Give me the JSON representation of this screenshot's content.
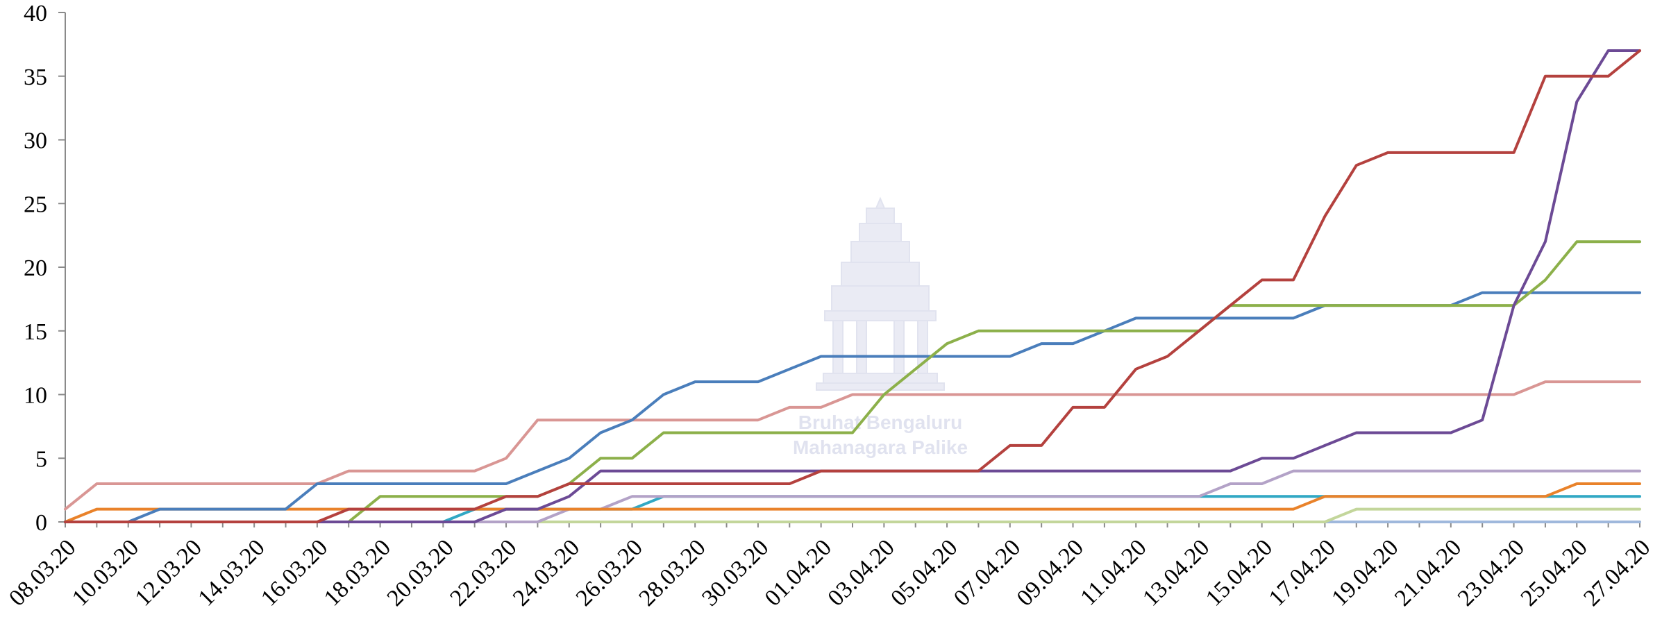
{
  "chart_data": {
    "type": "line",
    "title": "",
    "xlabel": "",
    "ylabel": "",
    "ylim": [
      0,
      40
    ],
    "yticks": [
      0,
      5,
      10,
      15,
      20,
      25,
      30,
      35,
      40
    ],
    "grid": false,
    "legend": "none",
    "x": [
      "08.03.20",
      "09.03.20",
      "10.03.20",
      "11.03.20",
      "12.03.20",
      "13.03.20",
      "14.03.20",
      "15.03.20",
      "16.03.20",
      "17.03.20",
      "18.03.20",
      "19.03.20",
      "20.03.20",
      "21.03.20",
      "22.03.20",
      "23.03.20",
      "24.03.20",
      "25.03.20",
      "26.03.20",
      "27.03.20",
      "28.03.20",
      "29.03.20",
      "30.03.20",
      "31.03.20",
      "01.04.20",
      "02.04.20",
      "03.04.20",
      "04.04.20",
      "05.04.20",
      "06.04.20",
      "07.04.20",
      "08.04.20",
      "09.04.20",
      "10.04.20",
      "11.04.20",
      "12.04.20",
      "13.04.20",
      "14.04.20",
      "15.04.20",
      "16.04.20",
      "17.04.20",
      "18.04.20",
      "19.04.20",
      "20.04.20",
      "21.04.20",
      "22.04.20",
      "23.04.20",
      "24.04.20",
      "25.04.20",
      "26.04.20",
      "27.04.20"
    ],
    "xtick_labels": [
      "08.03.20",
      "10.03.20",
      "12.03.20",
      "14.03.20",
      "16.03.20",
      "18.03.20",
      "20.03.20",
      "22.03.20",
      "24.03.20",
      "26.03.20",
      "28.03.20",
      "30.03.20",
      "01.04.20",
      "03.04.20",
      "05.04.20",
      "07.04.20",
      "09.04.20",
      "11.04.20",
      "13.04.20",
      "15.04.20",
      "17.04.20",
      "19.04.20",
      "21.04.20",
      "23.04.20",
      "25.04.20",
      "27.04.20"
    ],
    "series": [
      {
        "color": "#9fb8dc",
        "values": [
          0,
          0,
          0,
          0,
          0,
          0,
          0,
          0,
          0,
          0,
          0,
          0,
          0,
          0,
          0,
          0,
          0,
          0,
          0,
          0,
          0,
          0,
          0,
          0,
          0,
          0,
          0,
          0,
          0,
          0,
          0,
          0,
          0,
          0,
          0,
          0,
          0,
          0,
          0,
          0,
          0,
          0,
          0,
          0,
          0,
          0,
          0,
          0,
          0,
          0,
          0
        ]
      },
      {
        "color": "#c3d69b",
        "values": [
          0,
          0,
          0,
          0,
          0,
          0,
          0,
          0,
          0,
          0,
          0,
          0,
          0,
          0,
          0,
          0,
          0,
          0,
          0,
          0,
          0,
          0,
          0,
          0,
          0,
          0,
          0,
          0,
          0,
          0,
          0,
          0,
          0,
          0,
          0,
          0,
          0,
          0,
          0,
          0,
          0,
          1,
          1,
          1,
          1,
          1,
          1,
          1,
          1,
          1,
          1
        ]
      },
      {
        "color": "#31a8c4",
        "values": [
          0,
          0,
          0,
          0,
          0,
          0,
          0,
          0,
          0,
          0,
          0,
          0,
          0,
          1,
          1,
          1,
          1,
          1,
          1,
          2,
          2,
          2,
          2,
          2,
          2,
          2,
          2,
          2,
          2,
          2,
          2,
          2,
          2,
          2,
          2,
          2,
          2,
          2,
          2,
          2,
          2,
          2,
          2,
          2,
          2,
          2,
          2,
          2,
          2,
          2,
          2
        ]
      },
      {
        "color": "#b3a2c7",
        "values": [
          0,
          0,
          0,
          0,
          0,
          0,
          0,
          0,
          0,
          0,
          0,
          0,
          0,
          0,
          0,
          0,
          1,
          1,
          2,
          2,
          2,
          2,
          2,
          2,
          2,
          2,
          2,
          2,
          2,
          2,
          2,
          2,
          2,
          2,
          2,
          2,
          2,
          3,
          3,
          4,
          4,
          4,
          4,
          4,
          4,
          4,
          4,
          4,
          4,
          4,
          4
        ]
      },
      {
        "color": "#e9822a",
        "values": [
          0,
          1,
          1,
          1,
          1,
          1,
          1,
          1,
          1,
          1,
          1,
          1,
          1,
          1,
          1,
          1,
          1,
          1,
          1,
          1,
          1,
          1,
          1,
          1,
          1,
          1,
          1,
          1,
          1,
          1,
          1,
          1,
          1,
          1,
          1,
          1,
          1,
          1,
          1,
          1,
          2,
          2,
          2,
          2,
          2,
          2,
          2,
          2,
          3,
          3,
          3
        ]
      },
      {
        "color": "#d99694",
        "values": [
          1,
          3,
          3,
          3,
          3,
          3,
          3,
          3,
          3,
          4,
          4,
          4,
          4,
          4,
          5,
          8,
          8,
          8,
          8,
          8,
          8,
          8,
          8,
          9,
          9,
          10,
          10,
          10,
          10,
          10,
          10,
          10,
          10,
          10,
          10,
          10,
          10,
          10,
          10,
          10,
          10,
          10,
          10,
          10,
          10,
          10,
          10,
          11,
          11,
          11,
          11
        ]
      },
      {
        "color": "#4a7ebb",
        "values": [
          0,
          0,
          0,
          1,
          1,
          1,
          1,
          1,
          3,
          3,
          3,
          3,
          3,
          3,
          3,
          4,
          5,
          7,
          8,
          10,
          11,
          11,
          11,
          12,
          13,
          13,
          13,
          13,
          13,
          13,
          13,
          14,
          14,
          15,
          16,
          16,
          16,
          16,
          16,
          16,
          17,
          17,
          17,
          17,
          17,
          18,
          18,
          18,
          18,
          18,
          18
        ]
      },
      {
        "color": "#8cb04a",
        "values": [
          0,
          0,
          0,
          0,
          0,
          0,
          0,
          0,
          0,
          0,
          2,
          2,
          2,
          2,
          2,
          2,
          3,
          5,
          5,
          7,
          7,
          7,
          7,
          7,
          7,
          7,
          10,
          12,
          14,
          15,
          15,
          15,
          15,
          15,
          15,
          15,
          15,
          17,
          17,
          17,
          17,
          17,
          17,
          17,
          17,
          17,
          17,
          19,
          22,
          22,
          22
        ]
      },
      {
        "color": "#6c4a95",
        "values": [
          0,
          0,
          0,
          0,
          0,
          0,
          0,
          0,
          0,
          0,
          0,
          0,
          0,
          0,
          1,
          1,
          2,
          4,
          4,
          4,
          4,
          4,
          4,
          4,
          4,
          4,
          4,
          4,
          4,
          4,
          4,
          4,
          4,
          4,
          4,
          4,
          4,
          4,
          5,
          5,
          6,
          7,
          7,
          7,
          7,
          8,
          17,
          22,
          33,
          37,
          37
        ]
      },
      {
        "color": "#b4413e",
        "values": [
          0,
          0,
          0,
          0,
          0,
          0,
          0,
          0,
          0,
          1,
          1,
          1,
          1,
          1,
          2,
          2,
          3,
          3,
          3,
          3,
          3,
          3,
          3,
          3,
          4,
          4,
          4,
          4,
          4,
          4,
          6,
          6,
          9,
          9,
          12,
          13,
          15,
          17,
          19,
          19,
          24,
          28,
          29,
          29,
          29,
          29,
          29,
          35,
          35,
          35,
          37
        ]
      }
    ]
  },
  "watermark": {
    "line1": "Bruhat Bengaluru",
    "line2": "Mahanagara Palike"
  }
}
